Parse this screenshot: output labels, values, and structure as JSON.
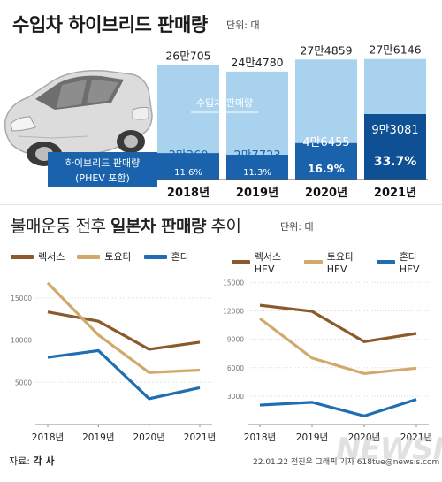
{
  "header": {
    "title": "수입차 하이브리드 판매량",
    "unit": "단위: 대"
  },
  "lower_header": {
    "title_prefix": "불매운동 전후 ",
    "title_bold": "일본차 판매량",
    "title_suffix": " 추이",
    "unit": "단위: 대"
  },
  "footer": {
    "source_prefix": "자료: ",
    "source": "각 사",
    "credit": "22.01.22 전진우 그래픽 기자 618tue@newsis.com",
    "watermark": "NEWSIS"
  },
  "colors": {
    "bar_total": "#a9d2ee",
    "bar_hybrid": "#1a63ac",
    "bar_hybrid_highlight": "#0f4f94",
    "lexus": "#8a5a2b",
    "toyota": "#d2a96a",
    "honda": "#1f6db3"
  },
  "chart_data": [
    {
      "type": "bar",
      "title": "수입차 하이브리드 판매량",
      "categories": [
        "2018년",
        "2019년",
        "2020년",
        "2021년"
      ],
      "series": [
        {
          "name": "수입차 판매량",
          "values": [
            260705,
            244780,
            274859,
            276146
          ]
        },
        {
          "name": "하이브리드 판매량 (PHEV 포함)",
          "values": [
            30360,
            27723,
            46455,
            93081
          ]
        }
      ],
      "total_labels": [
        "26만705",
        "24만4780",
        "27만4859",
        "27만6146"
      ],
      "hybrid_labels": [
        "3만360",
        "2만7723",
        "4만6455",
        "9만3081"
      ],
      "share_labels": [
        "11.6%",
        "11.3%",
        "16.9%",
        "33.7%"
      ],
      "legend_total": "수입차 판매량",
      "legend_hybrid_line1": "하이브리드 판매량",
      "legend_hybrid_line2": "(PHEV 포함)"
    },
    {
      "type": "line",
      "categories": [
        "2018년",
        "2019년",
        "2020년",
        "2021년"
      ],
      "yticks": [
        "15000",
        "10000",
        "5000"
      ],
      "ylim": [
        0,
        17500
      ],
      "series": [
        {
          "name": "렉서스",
          "values": [
            13340,
            12241,
            8911,
            9752
          ]
        },
        {
          "name": "토요타",
          "values": [
            16774,
            10611,
            6154,
            6441
          ]
        },
        {
          "name": "혼다",
          "values": [
            7956,
            8760,
            3056,
            4355
          ]
        }
      ],
      "legend_position": "top"
    },
    {
      "type": "line",
      "categories": [
        "2018년",
        "2019년",
        "2020년",
        "2021년"
      ],
      "yticks": [
        "15000",
        "12000",
        "9000",
        "6000",
        "3000"
      ],
      "ylim": [
        0,
        15600
      ],
      "series": [
        {
          "name": "렉서스HEV",
          "values": [
            12600,
            11950,
            8750,
            9620
          ]
        },
        {
          "name": "토요타HEV",
          "values": [
            11200,
            7020,
            5380,
            5950
          ]
        },
        {
          "name": "혼다HEV",
          "values": [
            2050,
            2350,
            900,
            2650
          ]
        }
      ],
      "legend_position": "top"
    }
  ]
}
